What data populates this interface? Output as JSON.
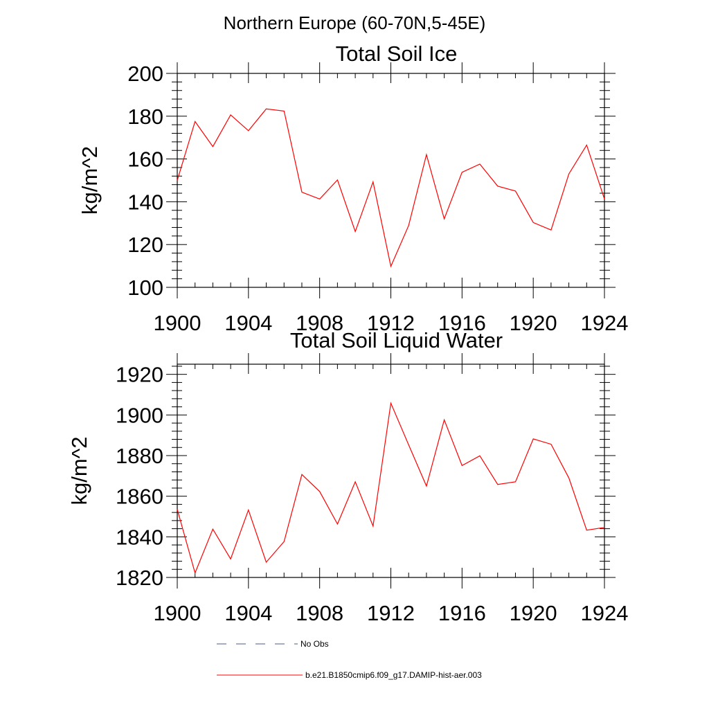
{
  "title": "Northern Europe (60-70N,5-45E)",
  "colors": {
    "series": "#ff0000",
    "no_obs": "#4a5a8a",
    "axes": "#000000"
  },
  "legend": {
    "no_obs_label": "No Obs",
    "series_label": "b.e21.B1850cmip6.f09_g17.DAMIP-hist-aer.003"
  },
  "chart_data": [
    {
      "type": "line",
      "title": "Total Soil Ice",
      "ylabel": "kg/m^2",
      "xlabel": "",
      "xlim": [
        1900,
        1924
      ],
      "ylim": [
        100,
        200
      ],
      "xticks": [
        1900,
        1904,
        1908,
        1912,
        1916,
        1920,
        1924
      ],
      "yticks": [
        100,
        120,
        140,
        160,
        180,
        200
      ],
      "grid": false,
      "series": [
        {
          "name": "b.e21.B1850cmip6.f09_g17.DAMIP-hist-aer.003",
          "color": "#ff0000",
          "x": [
            1900,
            1901,
            1902,
            1903,
            1904,
            1905,
            1906,
            1907,
            1908,
            1909,
            1910,
            1911,
            1912,
            1913,
            1914,
            1915,
            1916,
            1917,
            1918,
            1919,
            1920,
            1921,
            1922,
            1923,
            1924
          ],
          "y": [
            150,
            177.5,
            165.8,
            180.6,
            173.2,
            183.4,
            182.4,
            144.5,
            141.3,
            150.2,
            126.1,
            149.3,
            109.8,
            128.9,
            162,
            132,
            153.8,
            157.6,
            147.3,
            145,
            130.3,
            126.8,
            153,
            166.5,
            141.3
          ]
        }
      ]
    },
    {
      "type": "line",
      "title": "Total Soil Liquid Water",
      "ylabel": "kg/m^2",
      "xlabel": "",
      "xlim": [
        1900,
        1924
      ],
      "ylim": [
        1820,
        1925
      ],
      "xticks": [
        1900,
        1904,
        1908,
        1912,
        1916,
        1920,
        1924
      ],
      "yticks": [
        1820,
        1840,
        1860,
        1880,
        1900,
        1920
      ],
      "grid": false,
      "series": [
        {
          "name": "b.e21.B1850cmip6.f09_g17.DAMIP-hist-aer.003",
          "color": "#ff0000",
          "x": [
            1900,
            1901,
            1902,
            1903,
            1904,
            1905,
            1906,
            1907,
            1908,
            1909,
            1910,
            1911,
            1912,
            1913,
            1914,
            1915,
            1916,
            1917,
            1918,
            1919,
            1920,
            1921,
            1922,
            1923,
            1924
          ],
          "y": [
            1853.5,
            1822.2,
            1843.8,
            1829.1,
            1853.2,
            1827.5,
            1837.7,
            1870.7,
            1862.3,
            1846.3,
            1867.1,
            1845.3,
            1905.8,
            1885.3,
            1865,
            1897.6,
            1875.1,
            1879.9,
            1865.8,
            1867.1,
            1888.2,
            1885.6,
            1869,
            1843.3,
            1844.6
          ]
        }
      ]
    }
  ]
}
